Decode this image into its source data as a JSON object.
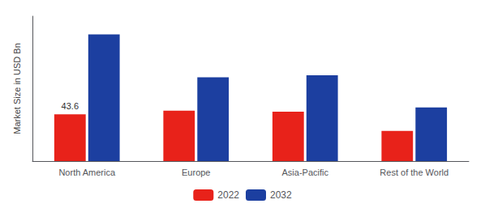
{
  "chart_data": {
    "type": "bar",
    "categories": [
      "North America",
      "Europe",
      "Asia-Pacific",
      "Rest of the World"
    ],
    "series": [
      {
        "name": "2022",
        "color": "#e8221a",
        "values": [
          43.6,
          47.0,
          46.0,
          28.0
        ]
      },
      {
        "name": "2032",
        "color": "#1c3fa0",
        "values": [
          118.0,
          78.0,
          80.0,
          50.0
        ]
      }
    ],
    "ylabel": "Market Size in USD Bn",
    "annotations": [
      {
        "text": "43.6",
        "series": "2022",
        "x": "North America",
        "y": 43.6
      }
    ],
    "ylim": [
      0,
      135
    ],
    "grid": false,
    "legend": "bottom",
    "tick_labels": "x"
  }
}
